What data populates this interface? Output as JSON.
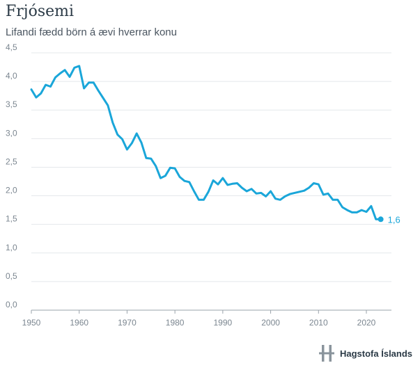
{
  "page": {
    "title": "Frjósemi",
    "subtitle": "Lifandi fædd börn á ævi hverrar konu"
  },
  "branding": {
    "name": "Hagstofa Íslands",
    "icon": "hagstofa-logo-icon",
    "color": "#8a949c"
  },
  "chart_data": {
    "type": "line",
    "title": "Frjósemi",
    "subtitle": "Lifandi fædd börn á ævi hverrar konu",
    "xlabel": "",
    "ylabel": "",
    "xlim": [
      1950,
      2023
    ],
    "ylim": [
      0,
      4.5
    ],
    "x_ticks": [
      1950,
      1960,
      1970,
      1980,
      1990,
      2000,
      2010,
      2020
    ],
    "y_ticks": [
      "0,0",
      "0,5",
      "1,0",
      "1,5",
      "2,0",
      "2,5",
      "3,0",
      "3,5",
      "4,0",
      "4,5"
    ],
    "y_tick_values": [
      0,
      0.5,
      1,
      1.5,
      2,
      2.5,
      3,
      3.5,
      4,
      4.5
    ],
    "grid": true,
    "line_color": "#1aa6d9",
    "end_label": "1,6",
    "x": [
      1950,
      1951,
      1952,
      1953,
      1954,
      1955,
      1956,
      1957,
      1958,
      1959,
      1960,
      1961,
      1962,
      1963,
      1964,
      1965,
      1966,
      1967,
      1968,
      1969,
      1970,
      1971,
      1972,
      1973,
      1974,
      1975,
      1976,
      1977,
      1978,
      1979,
      1980,
      1981,
      1982,
      1983,
      1984,
      1985,
      1986,
      1987,
      1988,
      1989,
      1990,
      1991,
      1992,
      1993,
      1994,
      1995,
      1996,
      1997,
      1998,
      1999,
      2000,
      2001,
      2002,
      2003,
      2004,
      2005,
      2006,
      2007,
      2008,
      2009,
      2010,
      2011,
      2012,
      2013,
      2014,
      2015,
      2016,
      2017,
      2018,
      2019,
      2020,
      2021,
      2022,
      2023
    ],
    "y": [
      3.86,
      3.72,
      3.79,
      3.94,
      3.91,
      4.07,
      4.14,
      4.2,
      4.08,
      4.24,
      4.27,
      3.88,
      3.98,
      3.98,
      3.84,
      3.71,
      3.58,
      3.28,
      3.07,
      2.99,
      2.81,
      2.92,
      3.09,
      2.93,
      2.66,
      2.65,
      2.52,
      2.31,
      2.35,
      2.49,
      2.48,
      2.33,
      2.26,
      2.24,
      2.08,
      1.93,
      1.93,
      2.07,
      2.27,
      2.2,
      2.31,
      2.19,
      2.21,
      2.22,
      2.14,
      2.08,
      2.12,
      2.04,
      2.05,
      1.99,
      2.08,
      1.95,
      1.93,
      1.99,
      2.03,
      2.05,
      2.07,
      2.09,
      2.14,
      2.22,
      2.2,
      2.02,
      2.04,
      1.93,
      1.93,
      1.8,
      1.75,
      1.71,
      1.71,
      1.75,
      1.72,
      1.82,
      1.59,
      1.59
    ]
  }
}
